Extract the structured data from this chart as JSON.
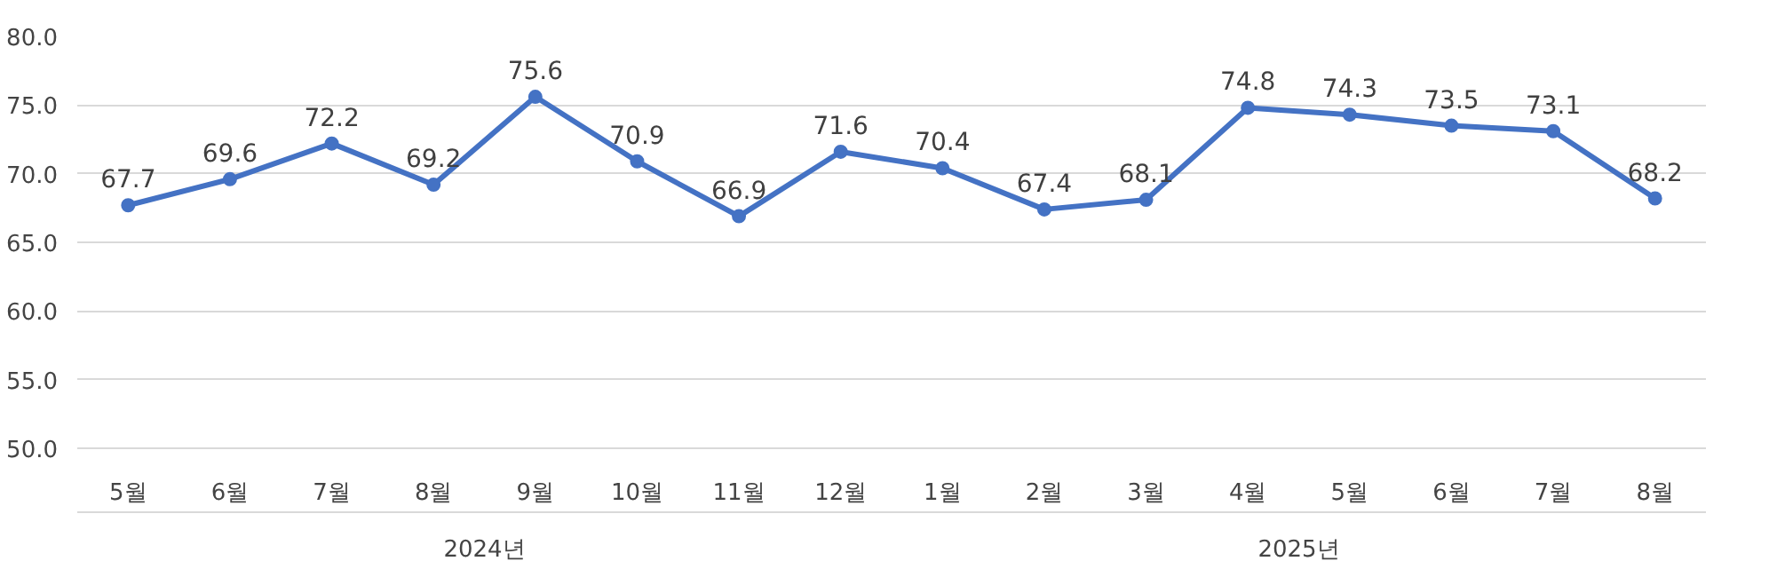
{
  "chart_data": {
    "type": "line",
    "categories": [
      "5월",
      "6월",
      "7월",
      "8월",
      "9월",
      "10월",
      "11월",
      "12월",
      "1월",
      "2월",
      "3월",
      "4월",
      "5월",
      "6월",
      "7월",
      "8월"
    ],
    "series": [
      {
        "color": "#4472c4",
        "values": [
          67.7,
          69.6,
          72.2,
          69.2,
          75.6,
          70.9,
          66.9,
          71.6,
          70.4,
          67.4,
          68.1,
          74.8,
          74.3,
          73.5,
          73.1,
          68.2
        ]
      }
    ],
    "ylim": [
      50,
      80
    ],
    "yticks": [
      {
        "value": 50,
        "label": "50.0"
      },
      {
        "value": 55,
        "label": "55.0"
      },
      {
        "value": 60,
        "label": "60.0"
      },
      {
        "value": 65,
        "label": "65.0"
      },
      {
        "value": 70,
        "label": "70.0"
      },
      {
        "value": 75,
        "label": "75.0"
      },
      {
        "value": 80,
        "label": "80.0"
      }
    ],
    "grid": "y",
    "marker": "circle",
    "line_style": "solid",
    "data_labels": true,
    "annotations": [
      "2024년",
      "2025년"
    ]
  }
}
